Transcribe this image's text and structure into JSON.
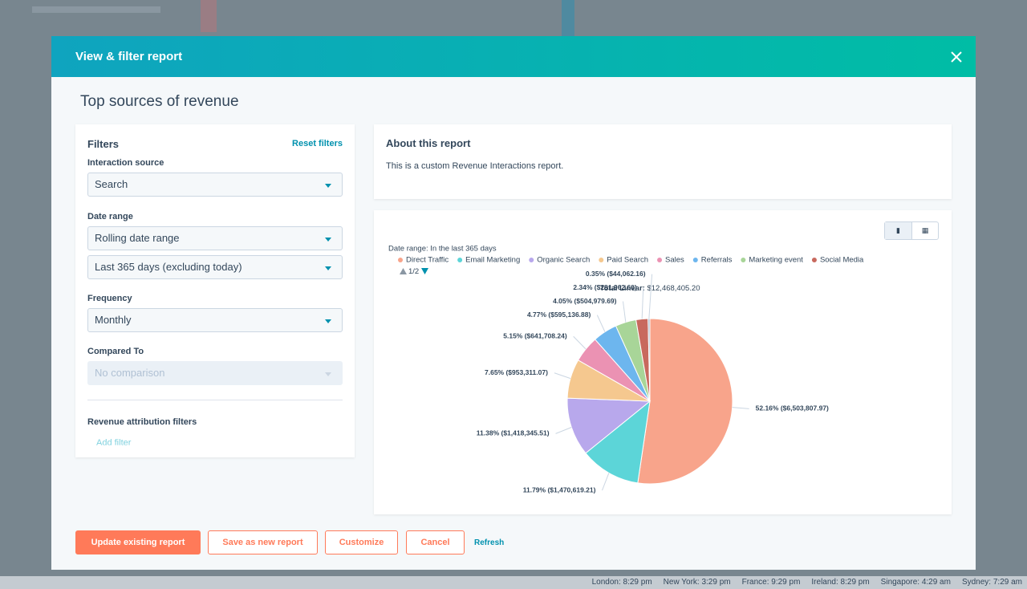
{
  "modal": {
    "title": "View & filter report",
    "report_title": "Top sources of revenue"
  },
  "filters": {
    "heading": "Filters",
    "reset": "Reset filters",
    "interaction_source": {
      "label": "Interaction source",
      "value": "Search"
    },
    "date_range": {
      "label": "Date range",
      "value": "Rolling date range",
      "period": "Last 365 days (excluding today)"
    },
    "frequency": {
      "label": "Frequency",
      "value": "Monthly"
    },
    "compared_to": {
      "label": "Compared To",
      "value": "No comparison"
    },
    "attribution": {
      "heading": "Revenue attribution filters",
      "add": "Add filter"
    }
  },
  "about": {
    "heading": "About this report",
    "text": "This is a custom Revenue Interactions report."
  },
  "chart_data": {
    "type": "pie",
    "subtitle": "Date range: In the last 365 days",
    "legend_page": "1/2",
    "total_label": "Total Linear:",
    "total_value": "$12,468,405.20",
    "categories": [
      "Direct Traffic",
      "Email Marketing",
      "Organic Search",
      "Paid Search",
      "Sales",
      "Referrals",
      "Marketing event",
      "Social Media",
      null
    ],
    "values": [
      52.16,
      11.79,
      11.38,
      7.65,
      5.15,
      4.77,
      4.05,
      2.34,
      0.35
    ],
    "value_labels": [
      "52.16% ($6,503,807.97)",
      "11.79% ($1,470,619.21)",
      "11.38% ($1,418,345.51)",
      "7.65% ($953,311.07)",
      "5.15% ($641,708.24)",
      "4.77% ($595,136.88)",
      "4.05% ($504,979.69)",
      "2.34% ($291,962.60)",
      "0.35% ($44,062.16)"
    ],
    "colors": [
      "#f8a48b",
      "#5cd5d8",
      "#b8a8ec",
      "#f5c88f",
      "#eb92b3",
      "#6db6ee",
      "#a8d598",
      "#c8695e",
      "#9fb1c4"
    ]
  },
  "buttons": {
    "update": "Update existing report",
    "save": "Save as new report",
    "customize": "Customize",
    "cancel": "Cancel",
    "refresh": "Refresh"
  },
  "clocks": [
    "London: 8:29 pm",
    "New York: 3:29 pm",
    "France: 9:29 pm",
    "Ireland: 8:29 pm",
    "Singapore: 4:29 am",
    "Sydney: 7:29 am"
  ]
}
